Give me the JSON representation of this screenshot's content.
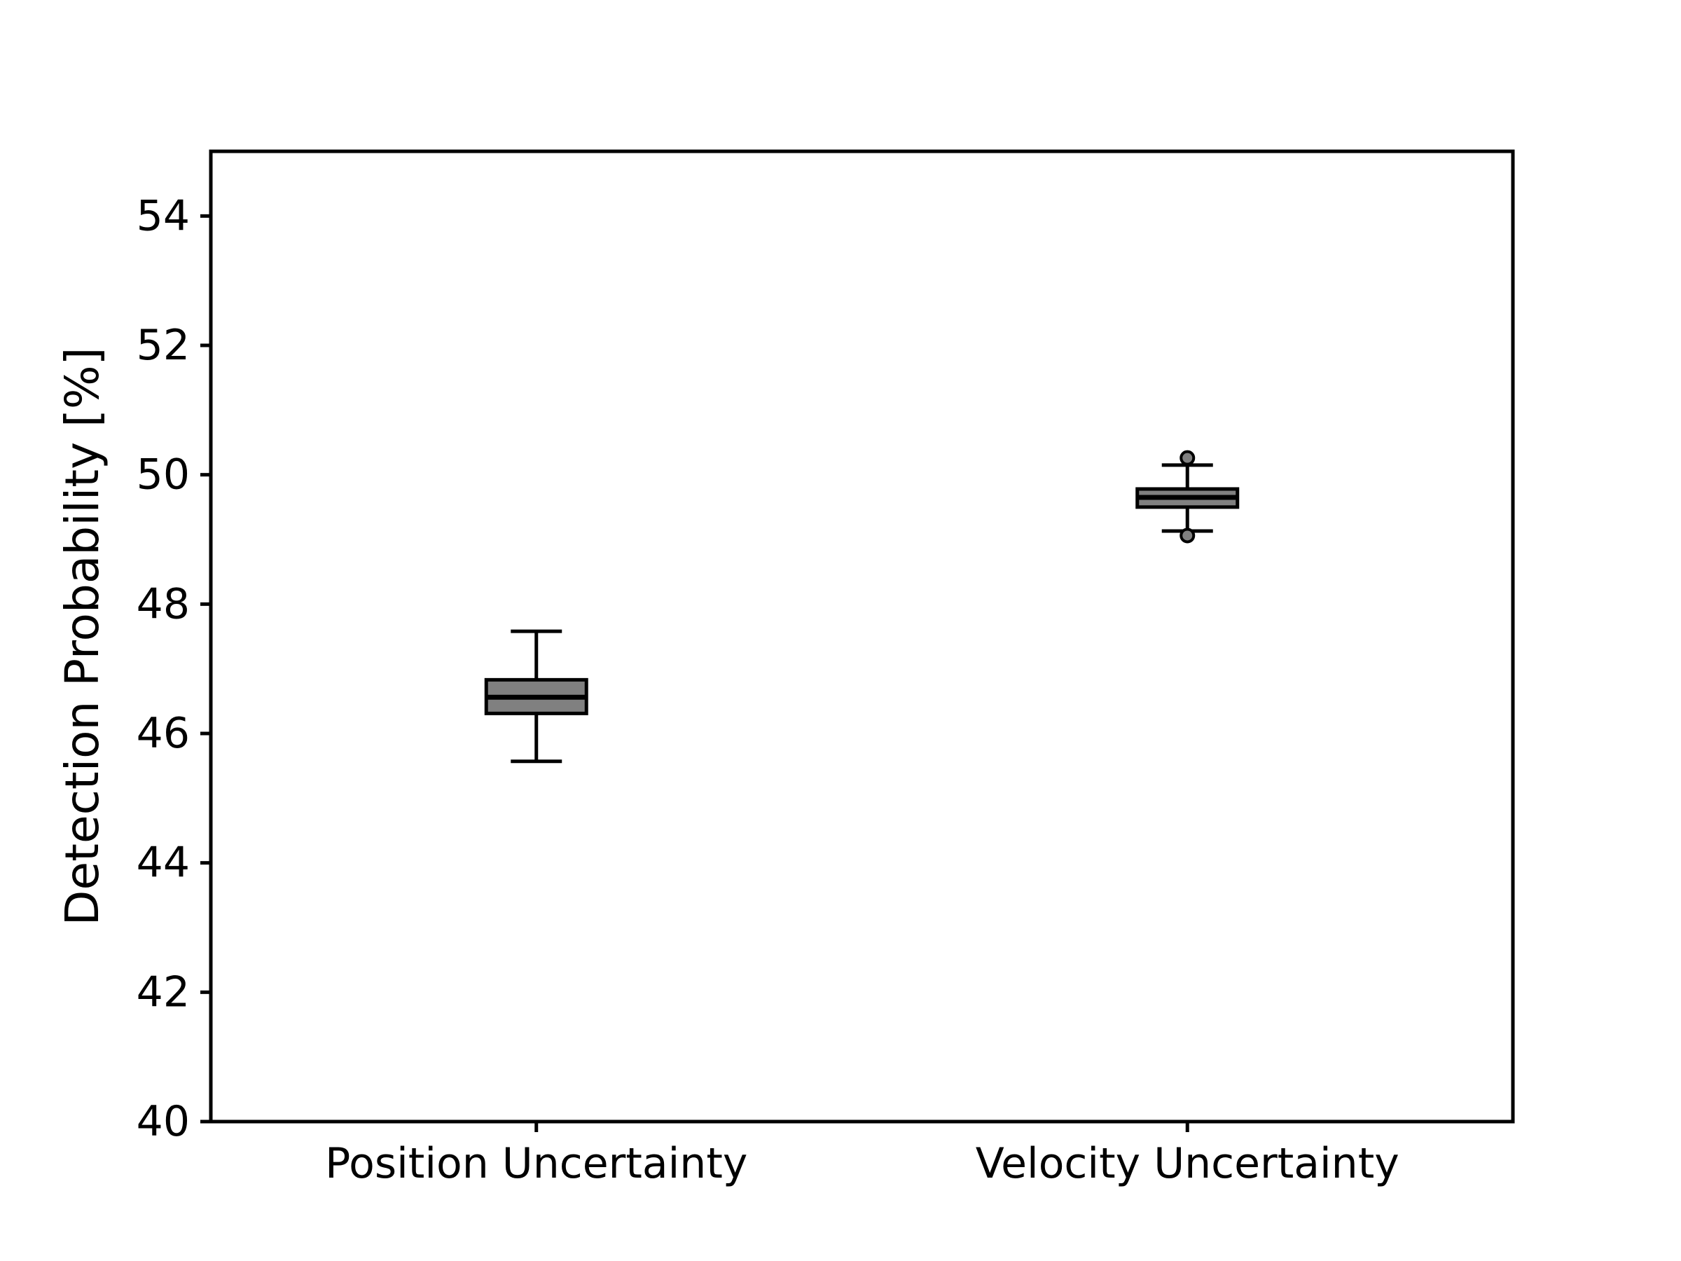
{
  "figure": {
    "background": "#ffffff",
    "box_fill_color": "#808080",
    "line_color": "#000000",
    "flier_fill_color": "#808080"
  },
  "chart_data": {
    "type": "boxplot",
    "title": "",
    "xlabel": "",
    "ylabel": "Detection Probability [%]",
    "categories": [
      "Position Uncertainty",
      "Velocity Uncertainty"
    ],
    "ylim": [
      40,
      55
    ],
    "yticks": [
      40,
      42,
      44,
      46,
      48,
      50,
      52,
      54
    ],
    "grid": false,
    "legend": false,
    "boxes": [
      {
        "label": "Position Uncertainty",
        "whislo": 45.57,
        "q1": 46.31,
        "med": 46.56,
        "q3": 46.83,
        "whishi": 47.58,
        "fliers": []
      },
      {
        "label": "Velocity Uncertainty",
        "whislo": 49.13,
        "q1": 49.5,
        "med": 49.65,
        "q3": 49.78,
        "whishi": 50.15,
        "fliers": [
          50.26,
          49.06
        ]
      }
    ]
  }
}
